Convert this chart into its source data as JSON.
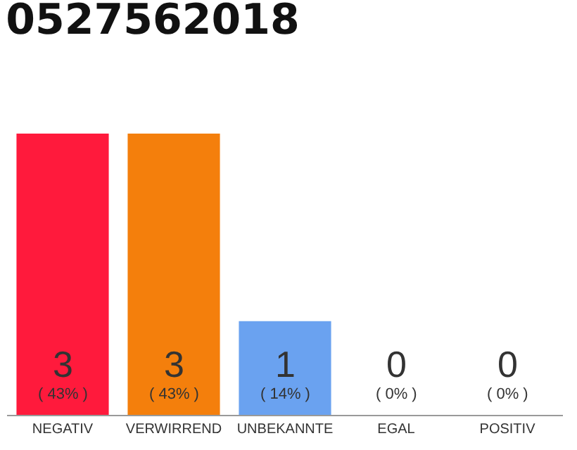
{
  "chart_data": {
    "type": "bar",
    "title": "0527562018",
    "categories": [
      "NEGATIV",
      "VERWIRREND",
      "UNBEKANNTE",
      "EGAL",
      "POSITIV"
    ],
    "values": [
      3,
      3,
      1,
      0,
      0
    ],
    "colors": [
      "#ff1a3c",
      "#f47f0c",
      "#6aa2f0",
      "#e6e6e6",
      "#e6e6e6"
    ],
    "value_labels": [
      "3\n( 43% )",
      "3\n( 43% )",
      "1\n( 14% )",
      "0\n( 0% )",
      "0\n( 0% )"
    ],
    "ylim": [
      0,
      3
    ]
  }
}
